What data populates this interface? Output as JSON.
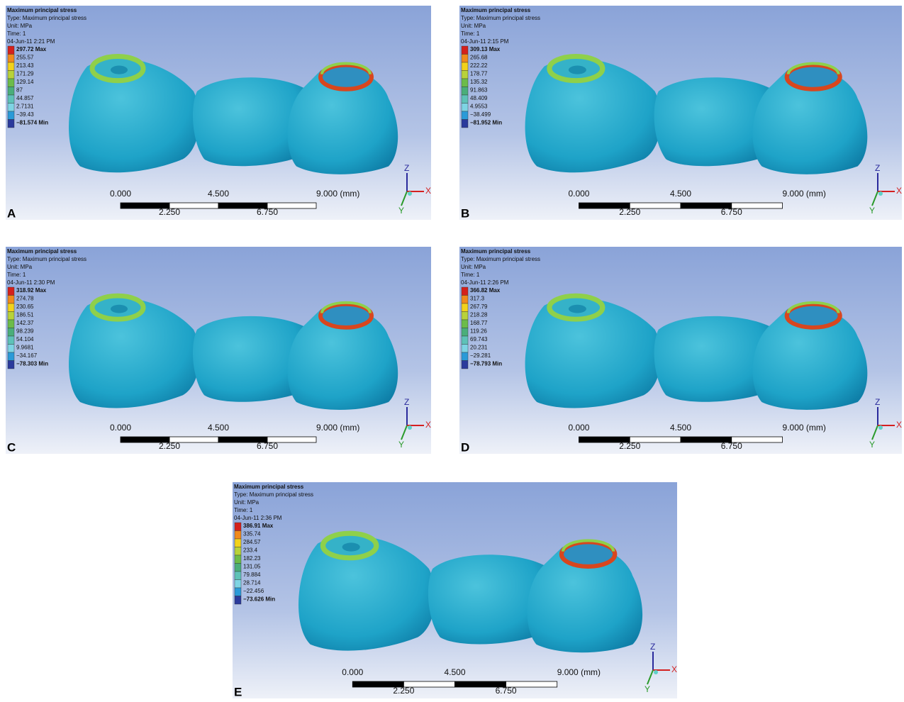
{
  "panels": [
    {
      "label": "A",
      "header": [
        "Maximum principal stress",
        "Type: Maximum principal stress",
        "Unit: MPa",
        "Time: 1",
        "04-Jun-11 2:21 PM"
      ],
      "legend": [
        "297.72 Max",
        "255.57",
        "213.43",
        "171.29",
        "129.14",
        "87",
        "44.857",
        "2.7131",
        "−39.43",
        "−81.574 Min"
      ],
      "scale_top": [
        "0.000",
        "4.500",
        "9.000 (mm)"
      ],
      "scale_bottom": [
        "2.250",
        "6.750"
      ],
      "axes": [
        "Z",
        "X",
        "Y"
      ]
    },
    {
      "label": "B",
      "header": [
        "Maximum principal stress",
        "Type: Maximum principal stress",
        "Unit: MPa",
        "Time: 1",
        "04-Jun-11 2:15 PM"
      ],
      "legend": [
        "309.13 Max",
        "265.68",
        "222.22",
        "178.77",
        "135.32",
        "91.863",
        "48.409",
        "4.9553",
        "−38.499",
        "−81.952 Min"
      ],
      "scale_top": [
        "0.000",
        "4.500",
        "9.000 (mm)"
      ],
      "scale_bottom": [
        "2.250",
        "6.750"
      ],
      "axes": [
        "Z",
        "X",
        "Y"
      ]
    },
    {
      "label": "C",
      "header": [
        "Maximum principal stress",
        "Type: Maximum principal stress",
        "Unit: MPa",
        "Time: 1",
        "04-Jun-11 2:30 PM"
      ],
      "legend": [
        "318.92 Max",
        "274.78",
        "230.65",
        "186.51",
        "142.37",
        "98.239",
        "54.104",
        "9.9681",
        "−34.167",
        "−78.303 Min"
      ],
      "scale_top": [
        "0.000",
        "4.500",
        "9.000 (mm)"
      ],
      "scale_bottom": [
        "2.250",
        "6.750"
      ],
      "axes": [
        "Z",
        "X",
        "Y"
      ]
    },
    {
      "label": "D",
      "header": [
        "Maximum principal stress",
        "Type: Maximum principal stress",
        "Unit: MPa",
        "Time: 1",
        "04-Jun-11 2:26 PM"
      ],
      "legend": [
        "366.82 Max",
        "317.3",
        "267.79",
        "218.28",
        "168.77",
        "119.26",
        "69.743",
        "20.231",
        "−29.281",
        "−78.793 Min"
      ],
      "scale_top": [
        "0.000",
        "4.500",
        "9.000 (mm)"
      ],
      "scale_bottom": [
        "2.250",
        "6.750"
      ],
      "axes": [
        "Z",
        "X",
        "Y"
      ]
    },
    {
      "label": "E",
      "header": [
        "Maximum principal stress",
        "Type: Maximum principal stress",
        "Unit: MPa",
        "Time: 1",
        "04-Jun-11 2:36 PM"
      ],
      "legend": [
        "386.91 Max",
        "335.74",
        "284.57",
        "233.4",
        "182.23",
        "131.05",
        "79.884",
        "28.714",
        "−22.456",
        "−73.626 Min"
      ],
      "scale_top": [
        "0.000",
        "4.500",
        "9.000 (mm)"
      ],
      "scale_bottom": [
        "2.250",
        "6.750"
      ],
      "axes": [
        "Z",
        "X",
        "Y"
      ]
    }
  ]
}
